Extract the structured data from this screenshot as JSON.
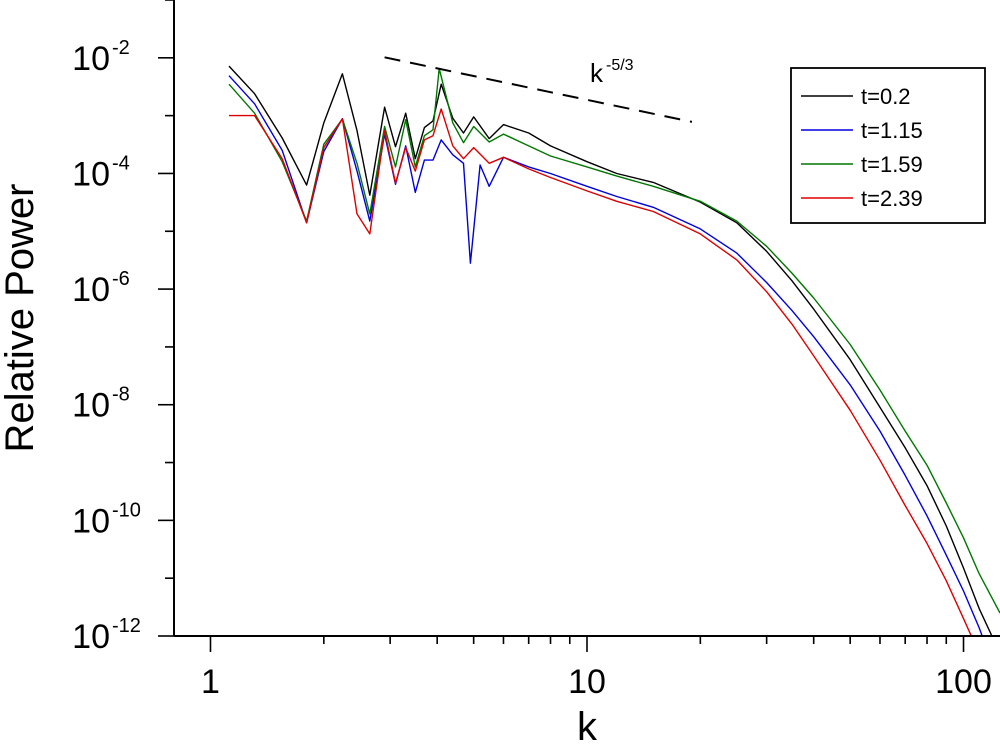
{
  "chart_data": {
    "type": "line",
    "title": "",
    "xlabel": "k",
    "ylabel": "Relative Power",
    "x_scale": "log",
    "y_scale": "log",
    "xlim": [
      0.8,
      125
    ],
    "ylim": [
      1e-12,
      0.1
    ],
    "grid": false,
    "legend_position": "top-right",
    "x_ticks": [
      {
        "value": 1,
        "label": "1"
      },
      {
        "value": 10,
        "label": "10"
      },
      {
        "value": 100,
        "label": "100"
      }
    ],
    "y_ticks": [
      {
        "value": 0.01,
        "base": "10",
        "exp": "-2"
      },
      {
        "value": 0.0001,
        "base": "10",
        "exp": "-4"
      },
      {
        "value": 1e-06,
        "base": "10",
        "exp": "-6"
      },
      {
        "value": 1e-08,
        "base": "10",
        "exp": "-8"
      },
      {
        "value": 1e-10,
        "base": "10",
        "exp": "-10"
      },
      {
        "value": 1e-12,
        "base": "10",
        "exp": "-12"
      }
    ],
    "annotation": {
      "text_base": "k",
      "text_exp": "-5/3",
      "line_start": {
        "k": 2.9,
        "power": 0.0102
      },
      "line_end": {
        "k": 19,
        "power": 0.00078
      }
    },
    "series": [
      {
        "name": "t=0.2",
        "color": "#000000",
        "points": [
          [
            1.12,
            0.0072
          ],
          [
            1.31,
            0.0024
          ],
          [
            1.55,
            0.00041
          ],
          [
            1.8,
            6.3e-05
          ],
          [
            2.0,
            0.00075
          ],
          [
            2.24,
            0.0053
          ],
          [
            2.45,
            0.00055
          ],
          [
            2.65,
            4.2e-05
          ],
          [
            2.9,
            0.0014
          ],
          [
            3.1,
            0.00029
          ],
          [
            3.3,
            0.0011
          ],
          [
            3.5,
            0.00018
          ],
          [
            3.7,
            0.00062
          ],
          [
            3.9,
            0.00081
          ],
          [
            4.1,
            0.0035
          ],
          [
            4.4,
            0.0009
          ],
          [
            4.7,
            0.0005
          ],
          [
            5.0,
            0.00095
          ],
          [
            5.5,
            0.0004
          ],
          [
            6.0,
            0.0007
          ],
          [
            7.0,
            0.0005
          ],
          [
            8.0,
            0.0003
          ],
          [
            10.0,
            0.00016
          ],
          [
            12.0,
            0.0001
          ],
          [
            15.0,
            7e-05
          ],
          [
            20.0,
            3.2e-05
          ],
          [
            25.0,
            1.4e-05
          ],
          [
            30.0,
            4.5e-06
          ],
          [
            35.0,
            1.4e-06
          ],
          [
            40.0,
            4.5e-07
          ],
          [
            50.0,
            6e-08
          ],
          [
            60.0,
            9e-09
          ],
          [
            70.0,
            1.8e-09
          ],
          [
            80.0,
            4e-10
          ],
          [
            90.0,
            8e-11
          ],
          [
            100.0,
            1.5e-11
          ],
          [
            110.0,
            3e-12
          ],
          [
            125.0,
            5e-13
          ]
        ]
      },
      {
        "name": "t=1.15",
        "color": "#0000dd",
        "points": [
          [
            1.12,
            0.0049
          ],
          [
            1.31,
            0.0016
          ],
          [
            1.55,
            0.00025
          ],
          [
            1.8,
            1.4e-05
          ],
          [
            2.0,
            0.00024
          ],
          [
            2.24,
            0.00089
          ],
          [
            2.45,
            0.00011
          ],
          [
            2.65,
            1.5e-05
          ],
          [
            2.9,
            0.00048
          ],
          [
            3.1,
            6.5e-05
          ],
          [
            3.3,
            0.0003
          ],
          [
            3.5,
            4.7e-05
          ],
          [
            3.7,
            0.00017
          ],
          [
            3.9,
            0.00017
          ],
          [
            4.1,
            0.00038
          ],
          [
            4.4,
            0.00021
          ],
          [
            4.7,
            0.00015
          ],
          [
            4.9,
            2.8e-06
          ],
          [
            5.2,
            0.00014
          ],
          [
            5.5,
            6e-05
          ],
          [
            6.0,
            0.00019
          ],
          [
            7.0,
            0.00013
          ],
          [
            8.0,
            0.0001
          ],
          [
            10.0,
            6e-05
          ],
          [
            12.0,
            4e-05
          ],
          [
            15.0,
            2.6e-05
          ],
          [
            20.0,
            1.1e-05
          ],
          [
            25.0,
            4.2e-06
          ],
          [
            30.0,
            1.3e-06
          ],
          [
            35.0,
            4.3e-07
          ],
          [
            40.0,
            1.5e-07
          ],
          [
            50.0,
            2.2e-08
          ],
          [
            60.0,
            3.5e-09
          ],
          [
            70.0,
            6e-10
          ],
          [
            80.0,
            1.2e-10
          ],
          [
            90.0,
            2.5e-11
          ],
          [
            100.0,
            6e-12
          ],
          [
            110.0,
            1.4e-12
          ],
          [
            120.0,
            3e-13
          ]
        ]
      },
      {
        "name": "t=1.59",
        "color": "#007700",
        "points": [
          [
            1.12,
            0.0035
          ],
          [
            1.31,
            0.0011
          ],
          [
            1.55,
            0.00016
          ],
          [
            1.8,
            1.5e-05
          ],
          [
            2.0,
            0.00032
          ],
          [
            2.24,
            0.00087
          ],
          [
            2.45,
            0.00015
          ],
          [
            2.65,
            2e-05
          ],
          [
            2.9,
            0.00065
          ],
          [
            3.1,
            0.00013
          ],
          [
            3.3,
            0.00085
          ],
          [
            3.5,
            0.00013
          ],
          [
            3.7,
            0.00045
          ],
          [
            3.9,
            0.00057
          ],
          [
            4.05,
            0.0065
          ],
          [
            4.4,
            0.00075
          ],
          [
            4.7,
            0.00034
          ],
          [
            5.0,
            0.00065
          ],
          [
            5.5,
            0.00035
          ],
          [
            6.0,
            0.00048
          ],
          [
            7.0,
            0.0003
          ],
          [
            8.0,
            0.0002
          ],
          [
            10.0,
            0.00013
          ],
          [
            12.0,
            9e-05
          ],
          [
            15.0,
            6e-05
          ],
          [
            20.0,
            3.3e-05
          ],
          [
            25.0,
            1.5e-05
          ],
          [
            30.0,
            5.5e-06
          ],
          [
            35.0,
            1.9e-06
          ],
          [
            40.0,
            7e-07
          ],
          [
            50.0,
            1.1e-07
          ],
          [
            60.0,
            1.8e-08
          ],
          [
            70.0,
            3.5e-09
          ],
          [
            80.0,
            9e-10
          ],
          [
            90.0,
            2e-10
          ],
          [
            100.0,
            5e-11
          ],
          [
            110.0,
            1.2e-11
          ],
          [
            125.0,
            2.5e-12
          ]
        ]
      },
      {
        "name": "t=2.39",
        "color": "#dd0000",
        "points": [
          [
            1.12,
            0.001
          ],
          [
            1.31,
            0.001
          ],
          [
            1.55,
            0.00018
          ],
          [
            1.8,
            1.4e-05
          ],
          [
            2.0,
            0.00028
          ],
          [
            2.24,
            0.00088
          ],
          [
            2.45,
            2e-05
          ],
          [
            2.65,
            9e-06
          ],
          [
            2.9,
            0.00055
          ],
          [
            3.1,
            6.8e-05
          ],
          [
            3.3,
            0.00028
          ],
          [
            3.5,
            0.00011
          ],
          [
            3.7,
            0.00038
          ],
          [
            3.9,
            0.00045
          ],
          [
            4.1,
            0.0013
          ],
          [
            4.4,
            0.0003
          ],
          [
            4.7,
            0.00018
          ],
          [
            5.0,
            0.00028
          ],
          [
            5.5,
            0.00015
          ],
          [
            6.0,
            0.00019
          ],
          [
            7.0,
            0.00012
          ],
          [
            8.0,
            8.5e-05
          ],
          [
            10.0,
            5e-05
          ],
          [
            12.0,
            3.3e-05
          ],
          [
            15.0,
            2.2e-05
          ],
          [
            20.0,
            9e-06
          ],
          [
            25.0,
            3.2e-06
          ],
          [
            30.0,
            9e-07
          ],
          [
            35.0,
            2.5e-07
          ],
          [
            40.0,
            7e-08
          ],
          [
            50.0,
            8e-09
          ],
          [
            60.0,
            1.1e-09
          ],
          [
            70.0,
            1.8e-10
          ],
          [
            80.0,
            4e-11
          ],
          [
            90.0,
            9e-12
          ],
          [
            100.0,
            2e-12
          ],
          [
            110.0,
            5e-13
          ]
        ]
      }
    ]
  }
}
